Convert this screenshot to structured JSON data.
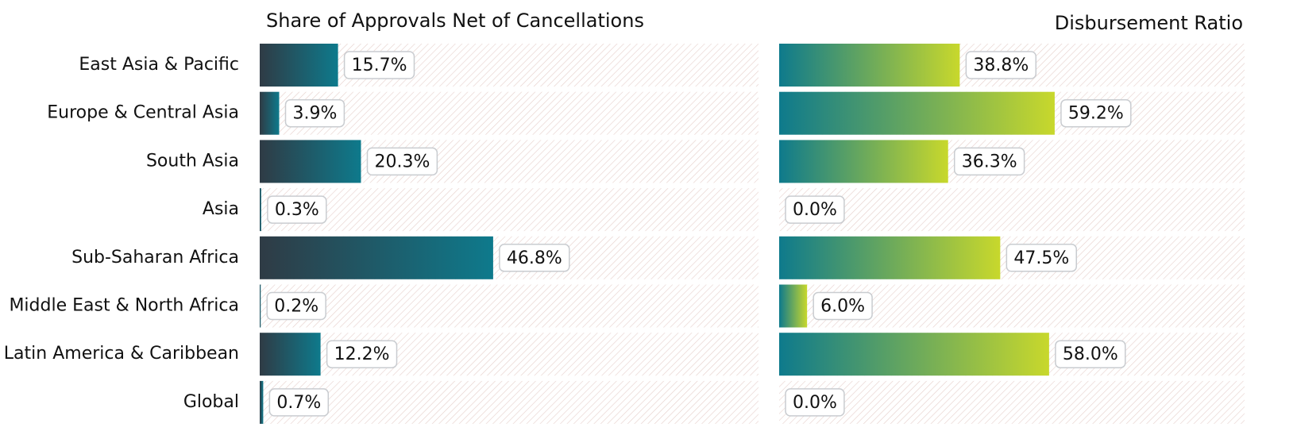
{
  "chart_data": [
    {
      "type": "bar",
      "orientation": "horizontal",
      "title": "Share of Approvals Net of Cancellations",
      "categories": [
        "East Asia & Pacific",
        "Europe & Central Asia",
        "South Asia",
        "Asia",
        "Sub-Saharan Africa",
        "Middle East & North Africa",
        "Latin America & Caribbean",
        "Global"
      ],
      "values": [
        15.7,
        3.9,
        20.3,
        0.3,
        46.8,
        0.2,
        12.2,
        0.7
      ],
      "value_labels": [
        "15.7%",
        "3.9%",
        "20.3%",
        "0.3%",
        "46.8%",
        "0.2%",
        "12.2%",
        "0.7%"
      ],
      "xlim": [
        0,
        100
      ],
      "colors": [
        "#2f3b45",
        "#0e7a8c"
      ]
    },
    {
      "type": "bar",
      "orientation": "horizontal",
      "title": "Disbursement Ratio",
      "values": [
        38.8,
        59.2,
        36.3,
        0.0,
        47.5,
        6.0,
        58.0,
        0.0
      ],
      "value_labels": [
        "38.8%",
        "59.2%",
        "36.3%",
        "0.0%",
        "47.5%",
        "6.0%",
        "58.0%",
        "0.0%"
      ],
      "xlim": [
        0,
        100
      ],
      "colors": [
        "#0e7a8c",
        "#c8d82c"
      ]
    }
  ]
}
